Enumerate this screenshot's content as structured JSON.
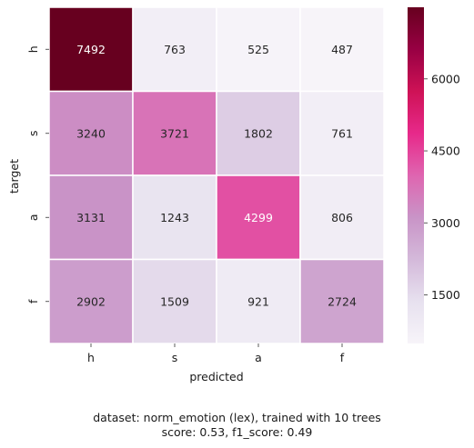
{
  "chart_data": {
    "type": "heatmap",
    "xlabel": "predicted",
    "ylabel": "target",
    "x_categories": [
      "h",
      "s",
      "a",
      "f"
    ],
    "y_categories": [
      "h",
      "s",
      "a",
      "f"
    ],
    "values": [
      [
        7492,
        763,
        525,
        487
      ],
      [
        3240,
        3721,
        1802,
        761
      ],
      [
        3131,
        1243,
        4299,
        806
      ],
      [
        2902,
        1509,
        921,
        2724
      ]
    ],
    "colorbar": {
      "vmin": 487,
      "vmax": 7492,
      "ticks": [
        1500,
        3000,
        4500,
        6000
      ],
      "colormap": [
        "#f7f4f9",
        "#e7e1ef",
        "#d4b9da",
        "#c994c7",
        "#df65b0",
        "#e7298a",
        "#ce1256",
        "#980043",
        "#67001f"
      ]
    }
  },
  "caption": {
    "line1": "dataset: norm_emotion (lex), trained with 10 trees",
    "line2": "score: 0.53, f1_score: 0.49"
  }
}
